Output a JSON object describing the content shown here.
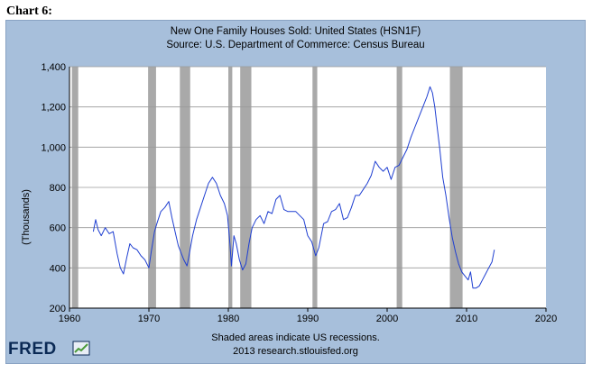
{
  "page": {
    "chart_number": "Chart 6:",
    "logo_text": "FRED"
  },
  "chart_data": {
    "type": "line",
    "title": "New One Family Houses Sold: United States (HSN1F)",
    "subtitle": "Source: U.S. Department of Commerce: Census Bureau",
    "xlabel": "",
    "ylabel": "(Thousands)",
    "xlim": [
      1960,
      2020
    ],
    "ylim": [
      200,
      1400
    ],
    "x_ticks": [
      1960,
      1970,
      1980,
      1990,
      2000,
      2010,
      2020
    ],
    "y_ticks": [
      200,
      400,
      600,
      800,
      1000,
      1200,
      1400
    ],
    "y_tick_labels": [
      "200",
      "400",
      "600",
      "800",
      "1,000",
      "1,200",
      "1,400"
    ],
    "grid": "horizontal",
    "line_color": "#1f3fd1",
    "recession_color": "#a9a9a9",
    "recessions": [
      [
        1960.3,
        1961.1
      ],
      [
        1969.9,
        1970.9
      ],
      [
        1973.9,
        1975.2
      ],
      [
        1980.0,
        1980.5
      ],
      [
        1981.5,
        1982.9
      ],
      [
        1990.6,
        1991.2
      ],
      [
        2001.2,
        2001.9
      ],
      [
        2007.9,
        2009.5
      ]
    ],
    "series": [
      {
        "name": "",
        "x": [
          1963.0,
          1963.3,
          1963.6,
          1964.0,
          1964.5,
          1965.0,
          1965.5,
          1966.0,
          1966.4,
          1966.8,
          1967.2,
          1967.6,
          1968.0,
          1968.5,
          1969.0,
          1969.5,
          1970.0,
          1970.3,
          1970.7,
          1971.0,
          1971.5,
          1972.0,
          1972.5,
          1972.9,
          1973.3,
          1973.7,
          1974.0,
          1974.4,
          1974.8,
          1975.0,
          1975.5,
          1976.0,
          1976.5,
          1977.0,
          1977.5,
          1978.0,
          1978.5,
          1979.0,
          1979.5,
          1979.9,
          1980.2,
          1980.4,
          1980.7,
          1981.0,
          1981.4,
          1981.8,
          1982.2,
          1982.6,
          1983.0,
          1983.5,
          1984.0,
          1984.5,
          1985.0,
          1985.5,
          1986.0,
          1986.5,
          1987.0,
          1987.5,
          1988.0,
          1988.5,
          1989.0,
          1989.5,
          1990.0,
          1990.5,
          1991.0,
          1991.4,
          1992.0,
          1992.5,
          1993.0,
          1993.5,
          1994.0,
          1994.5,
          1995.0,
          1995.5,
          1996.0,
          1996.5,
          1997.0,
          1997.5,
          1998.0,
          1998.5,
          1999.0,
          1999.5,
          2000.0,
          2000.5,
          2001.0,
          2001.5,
          2002.0,
          2002.5,
          2003.0,
          2003.5,
          2004.0,
          2004.5,
          2005.0,
          2005.4,
          2005.7,
          2006.0,
          2006.3,
          2006.6,
          2007.0,
          2007.4,
          2007.8,
          2008.2,
          2008.6,
          2009.0,
          2009.4,
          2009.8,
          2010.2,
          2010.5,
          2010.8,
          2011.2,
          2011.6,
          2012.0,
          2012.4,
          2012.8,
          2013.2,
          2013.5
        ],
        "values": [
          580,
          640,
          590,
          560,
          600,
          570,
          580,
          470,
          400,
          370,
          450,
          520,
          500,
          490,
          460,
          440,
          400,
          480,
          580,
          620,
          680,
          700,
          730,
          650,
          580,
          510,
          480,
          440,
          410,
          450,
          560,
          640,
          700,
          760,
          820,
          850,
          820,
          760,
          720,
          660,
          520,
          410,
          560,
          520,
          440,
          390,
          420,
          520,
          600,
          640,
          660,
          620,
          680,
          670,
          740,
          760,
          690,
          680,
          680,
          680,
          660,
          640,
          560,
          530,
          460,
          500,
          620,
          630,
          680,
          690,
          720,
          640,
          650,
          700,
          760,
          760,
          790,
          820,
          860,
          930,
          900,
          880,
          900,
          840,
          900,
          910,
          950,
          990,
          1050,
          1100,
          1150,
          1200,
          1250,
          1300,
          1270,
          1200,
          1100,
          1000,
          850,
          760,
          650,
          550,
          480,
          420,
          380,
          360,
          340,
          380,
          300,
          300,
          310,
          340,
          370,
          400,
          430,
          490
        ]
      }
    ]
  }
}
